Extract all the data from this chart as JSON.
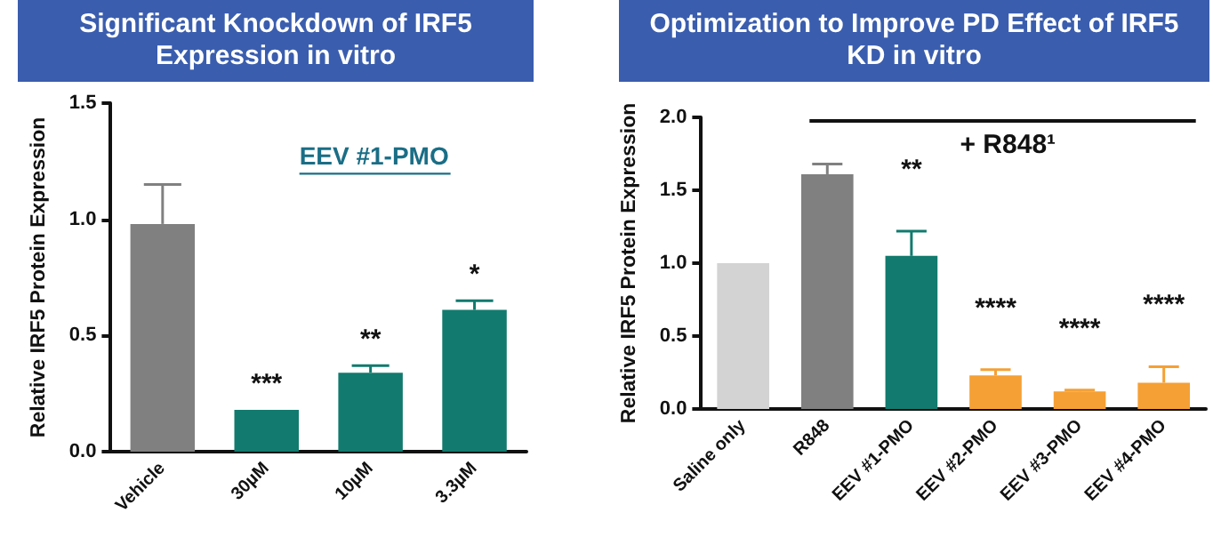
{
  "chart_data": [
    {
      "type": "bar",
      "title": "Significant Knockdown of IRF5 Expression in vitro",
      "ylabel": "Relative IRF5 Protein Expression",
      "categories": [
        "Vehicle",
        "30µM",
        "10µM",
        "3.3µM"
      ],
      "values": [
        0.98,
        0.18,
        0.34,
        0.61
      ],
      "colors": [
        "#808080",
        "#127a6e",
        "#127a6e",
        "#127a6e"
      ],
      "errors": [
        [
          0.98,
          1.15
        ],
        null,
        [
          0.34,
          0.37
        ],
        [
          0.61,
          0.65
        ]
      ],
      "ylim": [
        0,
        1.5
      ],
      "yticks": [
        {
          "value": 0,
          "label": "0.0"
        },
        {
          "value": 0.5,
          "label": "0.5"
        },
        {
          "value": 1,
          "label": "1.0"
        },
        {
          "value": 1.5,
          "label": "1.5"
        }
      ],
      "annotations": [
        "EEV #1-PMO",
        {
          "text": "***",
          "x": "30µM",
          "y": 0.18
        },
        {
          "text": "**",
          "x": "10µM",
          "y": 0.37
        },
        {
          "text": "*",
          "x": "3.3µM",
          "y": 0.65
        }
      ],
      "grid": false
    },
    {
      "type": "bar",
      "title": "Optimization to Improve PD Effect of IRF5 KD in vitro",
      "ylabel": "Relative IRF5 Protein Expression",
      "categories": [
        "Saline only",
        "R848",
        "EEV #1-PMO",
        "EEV #2-PMO",
        "EEV #3-PMO",
        "EEV #4-PMO"
      ],
      "values": [
        1.0,
        1.61,
        1.05,
        0.23,
        0.12,
        0.18
      ],
      "colors": [
        "#d3d3d3",
        "#808080",
        "#127a6e",
        "#f5a035",
        "#f5a035",
        "#f5a035"
      ],
      "errors": [
        null,
        [
          1.61,
          1.68
        ],
        [
          1.05,
          1.22
        ],
        [
          0.23,
          0.27
        ],
        [
          0.12,
          0.13
        ],
        [
          0.18,
          0.29
        ]
      ],
      "ylim": [
        0,
        2.0
      ],
      "yticks": [
        {
          "value": 0,
          "label": "0.0"
        },
        {
          "value": 0.5,
          "label": "0.5"
        },
        {
          "value": 1,
          "label": "1.0"
        },
        {
          "value": 1.5,
          "label": "1.5"
        },
        {
          "value": 2,
          "label": "2.0"
        }
      ],
      "annotations": [
        "+ R848¹",
        {
          "text": "**",
          "x": "EEV #1-PMO",
          "y": 1.22
        },
        {
          "text": "****",
          "x": "EEV #2-PMO",
          "y": 0.27
        },
        {
          "text": "****",
          "x": "EEV #3-PMO",
          "y": 0.13
        },
        {
          "text": "****",
          "x": "EEV #4-PMO",
          "y": 0.29
        }
      ],
      "grid": false
    }
  ]
}
